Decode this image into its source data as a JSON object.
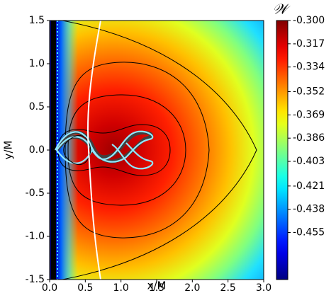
{
  "chart_data": {
    "type": "contour",
    "xlabel": "x/M",
    "ylabel": "y/M",
    "colorbar_label": "𝒲",
    "colormap": "jet",
    "xlim": [
      0,
      3
    ],
    "ylim": [
      -1.5,
      1.5
    ],
    "xticks": [
      {
        "value": 0,
        "label": "0.0"
      },
      0.5,
      {
        "value": 1,
        "label": "1.0"
      },
      1.5,
      {
        "value": 2,
        "label": "2.0"
      },
      2.5,
      {
        "value": 3,
        "label": "3.0"
      }
    ],
    "yticks": [
      -1.5,
      {
        "value": -1,
        "label": "-1.0"
      },
      -0.5,
      {
        "value": 0,
        "label": "0.0"
      },
      0.5,
      {
        "value": 1,
        "label": "1.0"
      },
      1.5
    ],
    "clim": [
      -0.4894,
      -0.3
    ],
    "cticks": [
      {
        "value": -0.3,
        "label": "-0.300"
      },
      -0.317,
      -0.334,
      -0.352,
      -0.369,
      -0.386,
      -0.403,
      -0.421,
      -0.438,
      -0.455
    ]
  }
}
